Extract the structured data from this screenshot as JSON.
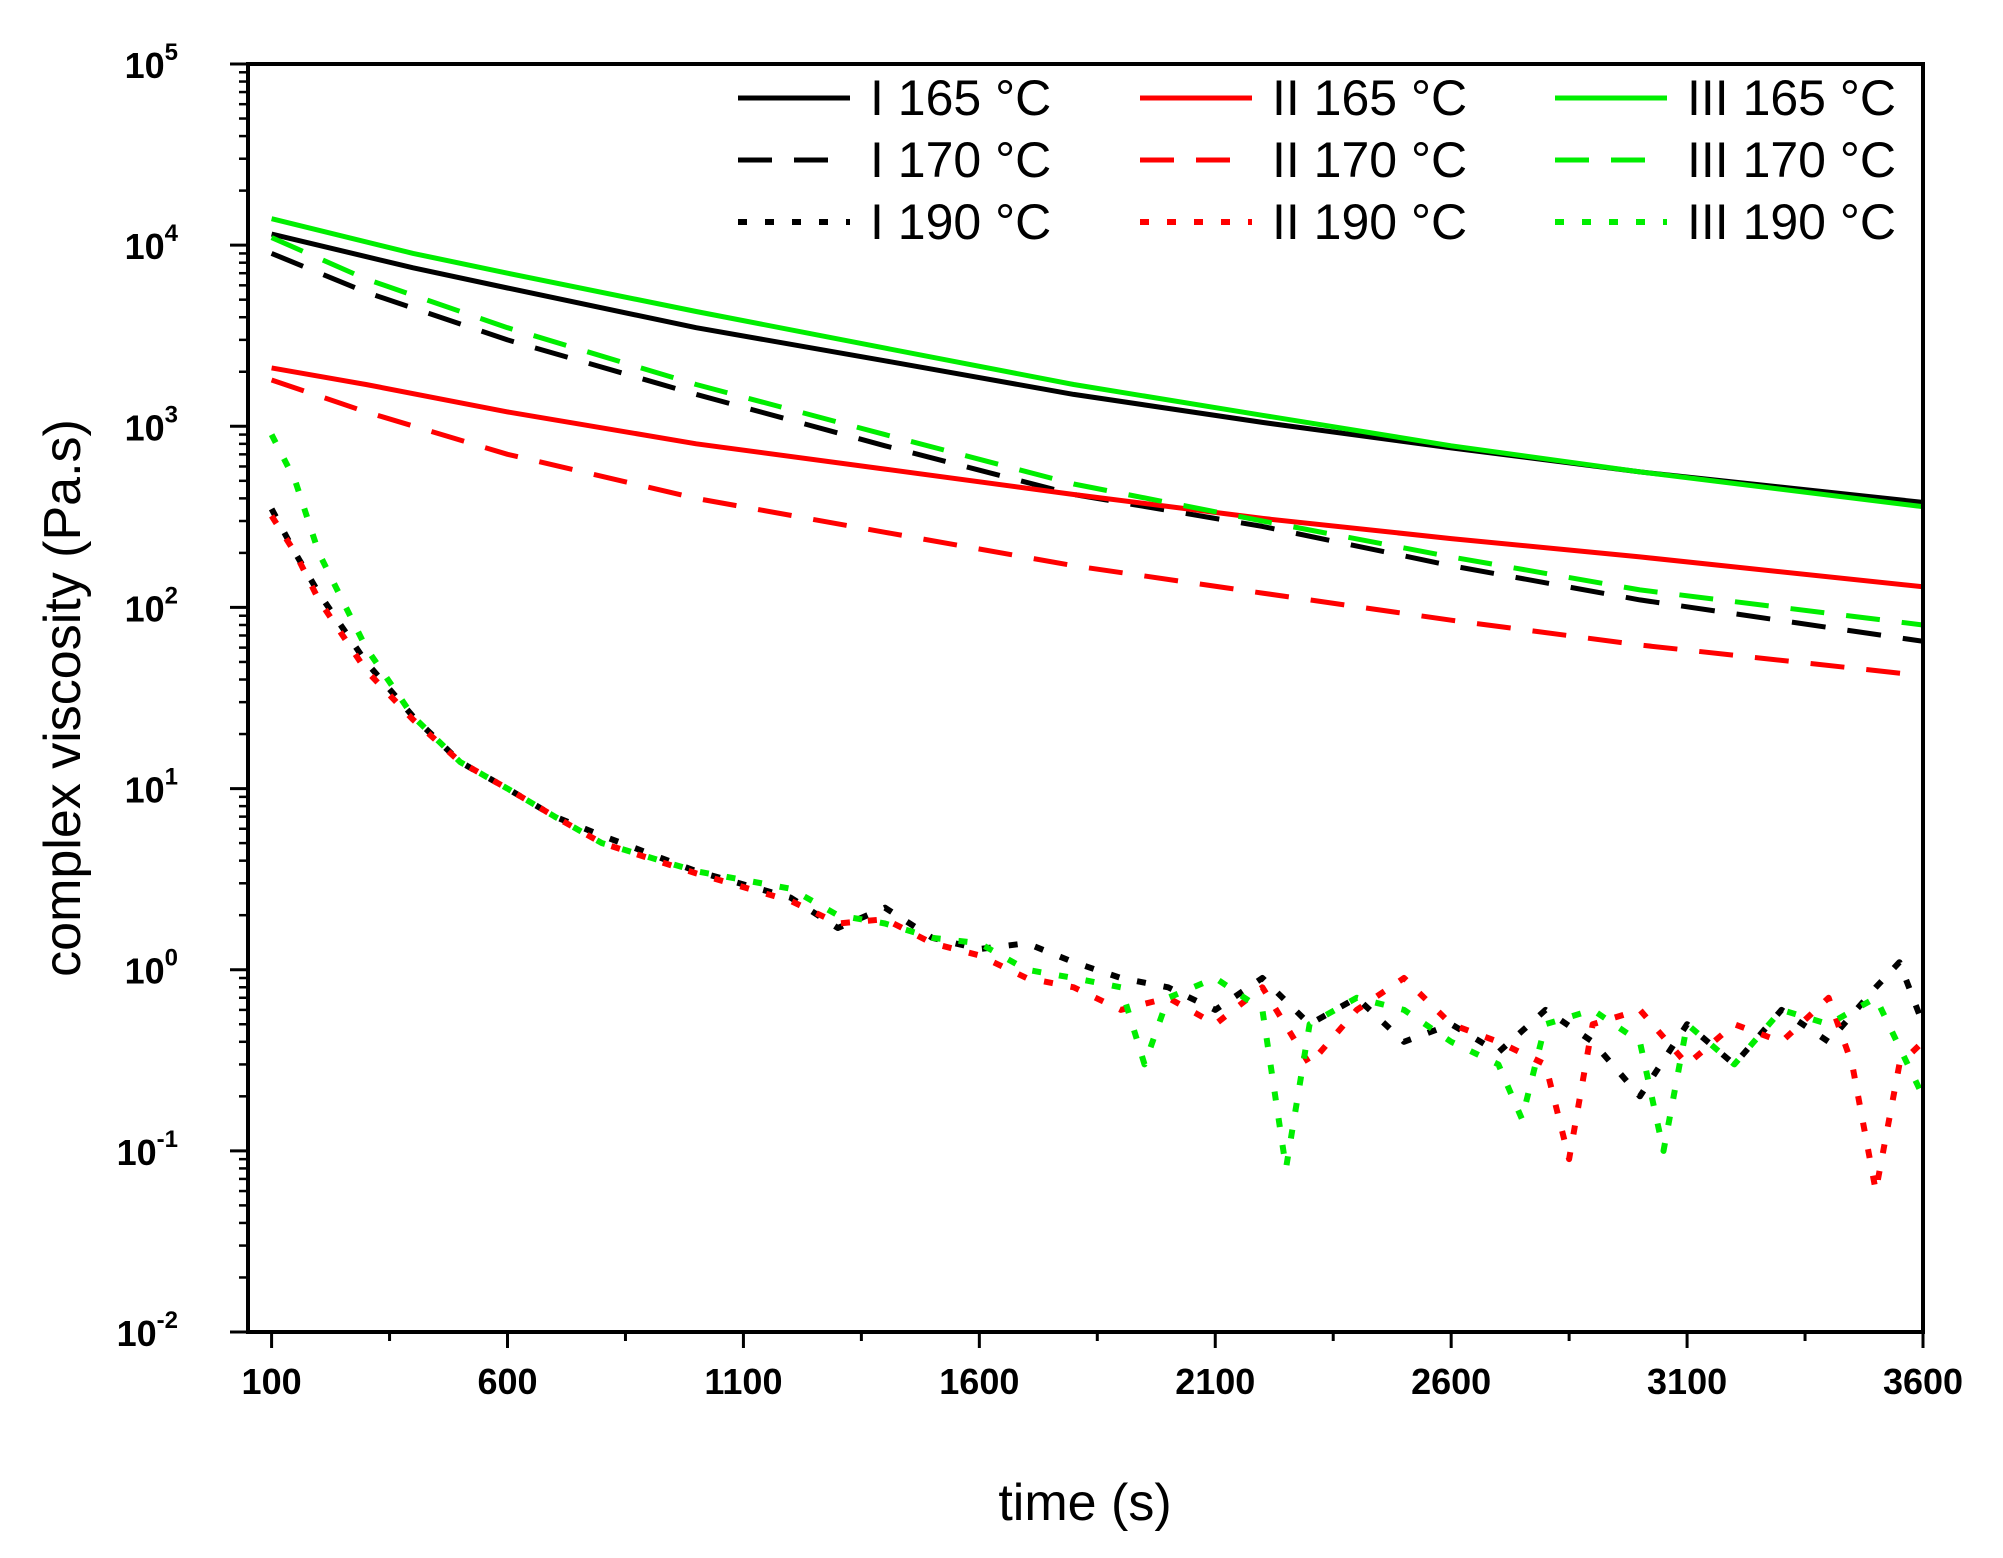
{
  "chart_data": {
    "type": "line",
    "title": "",
    "xlabel": "time (s)",
    "ylabel": "complex viscosity (Pa.s)",
    "xlim": [
      50,
      3600
    ],
    "ylim_log10": [
      -2,
      5
    ],
    "yscale": "log",
    "grid": false,
    "legend_position": "top-right",
    "x_ticks": [
      100,
      600,
      1100,
      1600,
      2100,
      2600,
      3100,
      3600
    ],
    "x_tick_labels": [
      "100",
      "600",
      "1100",
      "1600",
      "2100",
      "2600",
      "3100",
      "3600"
    ],
    "y_ticks_log10": [
      -2,
      -1,
      0,
      1,
      2,
      3,
      4,
      5
    ],
    "y_tick_labels": [
      {
        "base": "10",
        "exp": "-2"
      },
      {
        "base": "10",
        "exp": "-1"
      },
      {
        "base": "10",
        "exp": "0"
      },
      {
        "base": "10",
        "exp": "1"
      },
      {
        "base": "10",
        "exp": "2"
      },
      {
        "base": "10",
        "exp": "3"
      },
      {
        "base": "10",
        "exp": "4"
      },
      {
        "base": "10",
        "exp": "5"
      }
    ],
    "series": [
      {
        "name": "I  165 °C",
        "color": "#000000",
        "style": "solid",
        "x": [
          100,
          400,
          600,
          1000,
          1400,
          1800,
          2200,
          2600,
          3000,
          3600
        ],
        "y": [
          11500,
          7500,
          5800,
          3500,
          2300,
          1500,
          1050,
          760,
          560,
          380
        ]
      },
      {
        "name": "I  170 °C",
        "color": "#000000",
        "style": "dashed",
        "x": [
          100,
          300,
          600,
          1000,
          1400,
          1800,
          2200,
          2600,
          3000,
          3600
        ],
        "y": [
          9000,
          5500,
          3000,
          1500,
          780,
          420,
          280,
          170,
          110,
          65
        ]
      },
      {
        "name": "I  190 °C",
        "color": "#000000",
        "style": "dotted",
        "x": [
          100,
          150,
          200,
          300,
          400,
          500,
          600,
          700,
          800,
          1000,
          1200,
          1300,
          1400,
          1500,
          1600,
          1700,
          1800,
          1900,
          2000,
          2100,
          2200,
          2300,
          2400,
          2500,
          2600,
          2700,
          2800,
          2900,
          3000,
          3100,
          3200,
          3300,
          3400,
          3500,
          3550,
          3600
        ],
        "y": [
          350,
          200,
          120,
          50,
          25,
          14,
          10,
          7,
          5.5,
          3.5,
          2.5,
          1.7,
          2.2,
          1.5,
          1.3,
          1.4,
          1.1,
          0.9,
          0.8,
          0.6,
          0.9,
          0.5,
          0.7,
          0.4,
          0.5,
          0.35,
          0.6,
          0.4,
          0.2,
          0.5,
          0.3,
          0.6,
          0.4,
          0.8,
          1.1,
          0.5
        ]
      },
      {
        "name": "II  165 °C",
        "color": "#ff0000",
        "style": "solid",
        "x": [
          100,
          300,
          600,
          1000,
          1400,
          1800,
          2200,
          2600,
          3000,
          3600
        ],
        "y": [
          2100,
          1700,
          1200,
          800,
          580,
          420,
          310,
          240,
          190,
          130
        ]
      },
      {
        "name": "II  170 °C",
        "color": "#ff0000",
        "style": "dashed",
        "x": [
          100,
          300,
          600,
          1000,
          1400,
          1800,
          2200,
          2600,
          3000,
          3600
        ],
        "y": [
          1800,
          1200,
          700,
          400,
          260,
          170,
          120,
          85,
          62,
          42
        ]
      },
      {
        "name": "II  190 °C",
        "color": "#ff0000",
        "style": "dotted",
        "x": [
          100,
          150,
          200,
          300,
          400,
          500,
          600,
          700,
          800,
          1000,
          1200,
          1300,
          1400,
          1500,
          1600,
          1700,
          1800,
          1900,
          2000,
          2100,
          2200,
          2300,
          2400,
          2500,
          2600,
          2700,
          2800,
          2850,
          2900,
          3000,
          3100,
          3200,
          3300,
          3400,
          3450,
          3500,
          3550,
          3600
        ],
        "y": [
          320,
          200,
          110,
          45,
          24,
          14,
          10,
          7,
          5,
          3.4,
          2.4,
          1.8,
          1.9,
          1.4,
          1.2,
          0.9,
          0.8,
          0.6,
          0.7,
          0.5,
          0.8,
          0.3,
          0.6,
          0.9,
          0.5,
          0.4,
          0.3,
          0.09,
          0.5,
          0.6,
          0.3,
          0.5,
          0.4,
          0.7,
          0.3,
          0.06,
          0.3,
          0.4
        ]
      },
      {
        "name": "III  165 °C",
        "color": "#00ee00",
        "style": "solid",
        "x": [
          100,
          400,
          600,
          1000,
          1400,
          1800,
          2200,
          2600,
          3000,
          3600
        ],
        "y": [
          14000,
          9000,
          7000,
          4300,
          2700,
          1700,
          1150,
          780,
          560,
          360
        ]
      },
      {
        "name": "III  170 °C",
        "color": "#00ee00",
        "style": "dashed",
        "x": [
          100,
          300,
          600,
          1000,
          1400,
          1800,
          2200,
          2600,
          3000,
          3600
        ],
        "y": [
          11000,
          6500,
          3500,
          1700,
          900,
          480,
          300,
          190,
          125,
          80
        ]
      },
      {
        "name": "III  190 °C",
        "color": "#00ee00",
        "style": "dotted",
        "x": [
          100,
          150,
          200,
          300,
          400,
          500,
          600,
          700,
          800,
          1000,
          1200,
          1300,
          1400,
          1500,
          1600,
          1700,
          1800,
          1900,
          1950,
          2000,
          2100,
          2200,
          2250,
          2300,
          2400,
          2500,
          2600,
          2700,
          2750,
          2800,
          2900,
          3000,
          3050,
          3100,
          3200,
          3300,
          3400,
          3500,
          3600
        ],
        "y": [
          900,
          500,
          200,
          60,
          25,
          14,
          10,
          7,
          5,
          3.5,
          2.8,
          2.0,
          1.8,
          1.5,
          1.4,
          1.0,
          0.9,
          0.8,
          0.3,
          0.7,
          0.9,
          0.6,
          0.08,
          0.5,
          0.7,
          0.6,
          0.4,
          0.3,
          0.15,
          0.5,
          0.6,
          0.4,
          0.1,
          0.5,
          0.3,
          0.6,
          0.5,
          0.7,
          0.2
        ]
      }
    ]
  }
}
